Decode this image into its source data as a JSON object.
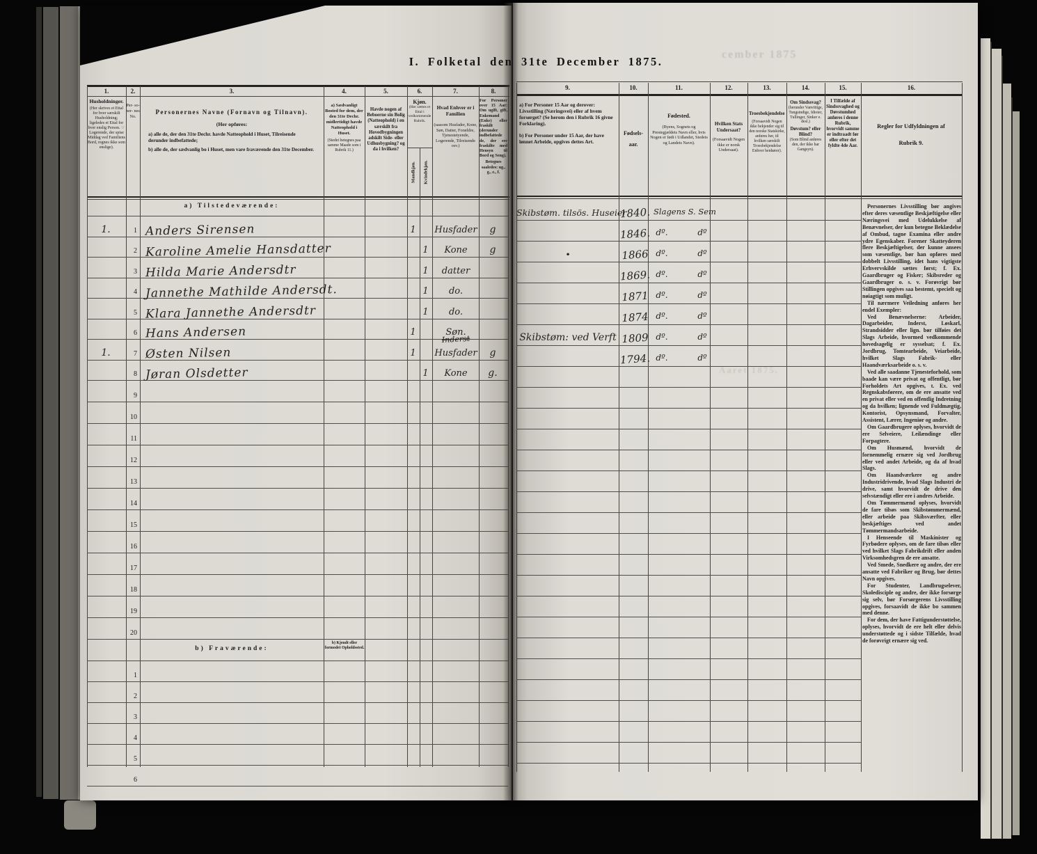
{
  "title": "I. Folketal den 31te December 1875.",
  "ghosts": {
    "top": "cember 1875",
    "mid": "Aaret 1875."
  },
  "columns": {
    "c1": {
      "num": "1.",
      "title": "Husholdninger.",
      "note": "(Her skrives et Ettal for hver særskilt Husholdning; ligeledes et Ettal for hver enslig Person. ☞ Logerende, der spise Middag ved Familiens Bord, regnes ikke som enslige)."
    },
    "c2": {
      "num": "2.",
      "title": "Per- so- ner- nes No."
    },
    "c3": {
      "num": "3.",
      "title": "Personernes Navne (Fornavn og Tilnavn).",
      "note_intro": "(Her opføres:",
      "note_a": "a) alle de, der den 31te Dechr. havde Natteophold i Huset, Tilreisende derunder indbefattede;",
      "note_b": "b) alle de, der sædvanlig bo i Huset, men vare fraværende den 31te December."
    },
    "c4": {
      "num": "4.",
      "title": "a) Sædvanligt Bosted for dem, der den 31te Dechr. midlertidigt havde Natteophold i Huset.",
      "note": "(Stedet betegnes paa samme Maade som i Rubrik 11.)"
    },
    "c5": {
      "num": "5.",
      "title": "Havde nogen af Beboerne sin Bolig (Natteophold) i en særskilt fra Hovedbygningen adskilt Side- eller Udhusbygning? og da i hvilken?"
    },
    "c6": {
      "num": "6.",
      "title": "Kjøn.",
      "note": "(Her sættes et Ettal i vedkommende Rubrik.",
      "sub_m": "Mandkjøn.",
      "sub_k": "Kvindekjøn."
    },
    "c7": {
      "num": "7.",
      "title": "Hvad Enhver er i Familien",
      "note": "(saasom Husfader, Kone, Søn, Datter, Forældre, Tjenestetyende, Logerende, Tilreisende osv.)"
    },
    "c8": {
      "num": "8.",
      "title": "For Personer over 15 Aar: Om ugift, gift, Enkemand (Enke) eller fraskilt (derunder indbefattede de, der ere fraskilte med Hensyn til Bord og Seng).",
      "note": "Betegnes saaledes: ug., g., e., f."
    },
    "c9": {
      "num": "9.",
      "a": "a) For Personer 15 Aar og derover: Livsstilling (Næringsvei) eller af hvem forsørget? (Se herom den i Rubrik 16 givne Forklaring).",
      "b": "b) For Personer under 15 Aar, der have lønnet Arbeide, opgives dettes Art."
    },
    "c10": {
      "num": "10.",
      "title": "Fødsels- aar."
    },
    "c11": {
      "num": "11.",
      "title": "Fødested.",
      "note": "(Byens, Sognets og Prestegjældets Navn eller, hvis Nogen er født i Udlandet, Stedets og Landets Navn)."
    },
    "c12": {
      "num": "12.",
      "title": "Hvilken Stats Undersaat?",
      "note": "(Forsaavidt Nogen ikke er norsk Undersaat)."
    },
    "c13": {
      "num": "13.",
      "title": "Troesbekjendelse.",
      "note": "(Forsaavidt Nogen ikke bekjender sig til den norske Statskirke, anføres her, til hvilken særskilt Troesbekjendelse Enhver henhører)."
    },
    "c14": {
      "num": "14.",
      "title": "Om Sindssvag?",
      "note1": "(herunder Vanvittige, Tungsindige, Idioter, Tullinger, Sinker e. desl.)",
      "title2": "Døvstum? eller Blind?",
      "note2": "(Som Blind anføres den, der ikke har Gangsyn)."
    },
    "c15": {
      "num": "15.",
      "title": "I Tilfælde af Sindssvaghed og Døvstumhed anføres i denne Rubrik, hvorvidt samme er indtraadt før eller efter det fyldte 4de Aar."
    },
    "c16": {
      "num": "16.",
      "title": "Regler for Udfyldningen af Rubrik 9."
    }
  },
  "sections": {
    "present": "a) Tilstedeværende:",
    "absent": "b) Fraværende:",
    "absent_col4": "b) Kjendt eller formodet Opholdssted."
  },
  "rows": [
    {
      "household": "1.",
      "no": "1",
      "name": "Anders Sirensen",
      "m": "1",
      "k": "",
      "family": "Husfader",
      "status": "g",
      "occupation": "Skibstøm. tilsös. Huseier",
      "born": "1840.",
      "birthplace": "Slagens S. Sem",
      "d1": "",
      "d2": ""
    },
    {
      "household": "",
      "no": "2",
      "name": "Karoline Amelie Hansdatter",
      "m": "",
      "k": "1",
      "family": "Kone",
      "status": "g",
      "occupation": "",
      "born": "1846.",
      "birthplace": "",
      "d1": "dº.",
      "d2": "dº"
    },
    {
      "household": "",
      "no": "3",
      "name": "Hilda Marie Andersdtr",
      "m": "",
      "k": "1",
      "family": "datter",
      "status": "",
      "occupation": "•",
      "born": "1866",
      "birthplace": "",
      "d1": "dº.",
      "d2": "dº"
    },
    {
      "household": "",
      "no": "4",
      "name": "Jannethe Mathilde Andersdt.",
      "m": "",
      "k": "1",
      "family": "do.",
      "status": "",
      "occupation": "",
      "born": "1869.",
      "birthplace": "",
      "d1": "dº.",
      "d2": "dº"
    },
    {
      "household": "",
      "no": "5",
      "name": "Klara Jannethe Andersdtr",
      "m": "",
      "k": "1",
      "family": "do.",
      "status": "",
      "occupation": "",
      "born": "1871",
      "birthplace": "",
      "d1": "dº.",
      "d2": "dº"
    },
    {
      "household": "",
      "no": "6",
      "name": "Hans Andersen",
      "m": "1",
      "k": "",
      "family": "Søn.",
      "status": "",
      "occupation": "",
      "born": "1874",
      "birthplace": "",
      "d1": "dº.",
      "d2": "dº"
    },
    {
      "household": "1.",
      "no": "7",
      "name": "Østen Nilsen",
      "m": "1",
      "k": "",
      "family": "Husfader",
      "family_struck": "Inderst",
      "status": "g",
      "occupation": "Skibstøm: ved Verft",
      "born": "1809",
      "birthplace": "",
      "d1": "dº.",
      "d2": "dº"
    },
    {
      "household": "",
      "no": "8",
      "name": "Jøran Olsdetter",
      "m": "",
      "k": "1",
      "family": "Kone",
      "status": "g.",
      "occupation": "",
      "born": "1794.",
      "birthplace": "",
      "d1": "dº.",
      "d2": "dº"
    }
  ],
  "present_empty": [
    "9",
    "10",
    "11",
    "12",
    "13",
    "14",
    "15",
    "16",
    "17",
    "18",
    "19",
    "20"
  ],
  "absent_empty": [
    "1",
    "2",
    "3",
    "4",
    "5",
    "6"
  ],
  "instructions": {
    "paragraphs": [
      "Personernes Livsstilling bør angives efter deres væsentlige Beskjæftigelse eller Næringsvei med Udelukkelse af Benævnelser, der kun betegne Beklædelse af Ombud, tagne Examina eller andre ydre Egenskaber. Forener Skatteyderen flere Beskjæftigelser, der kunne ansees som væsentlige, bør han opføres med dobbelt Livsstilling, idet hans vigtigste Erhvervskilde sættes først; f. Ex. Gaardbruger og Fisker; Skibsreder og Gaardbruger o. s. v. Forøvrigt bør Stillingen opgives saa bestemt, specielt og nøiagtigt som muligt.",
      "Til nærmere Veiledning anføres her endel Exempler:",
      "Ved Benævnelserne: Arbeider, Dagarbeider, Inderst, Løskarl, Strandsidder eller lign. bør tilføies det Slags Arbeide, hvormed vedkommende hovedsagelig er sysselsat; f. Ex. Jordbrug, Tomtearbeide, Veiarbeide, hvilket Slags Fabrik- eller Haandværksarbeide o. s. v.",
      "Ved alle saadanne Tjenesteforhold, som baade kan være privat og offentligt, bør Forholdets Art opgives, t. Ex. ved Regnskabsførere, om de ere ansatte ved en privat eller ved en offentlig Indretning og da hvilken; lignende ved Fuldmægtig, Kontorist, Opsynsmand, Forvalter, Assistent, Lærer, Ingeniør og andre.",
      "Om Gaardbrugere oplyses, hvorvidt de ere Selveiere, Leilændinge eller Forpagtere.",
      "Om Husmænd, hvorvidt de fornemmelig ernære sig ved Jordbrug eller ved andet Arbeide, og da af hvad Slags.",
      "Om Haandværkere og andre Industridrivende, hvad Slags Industri de drive, samt hvorvidt de drive den selvstændigt eller ere i andres Arbeide.",
      "Om Tømmermænd oplyses, hvorvidt de fare tilsøs som Skibstømmermænd, eller arbeide paa Skibsværfter, eller beskjæftiges ved andet Tømmermandsarbeide.",
      "I Henseende til Maskinister og Fyrbødere oplyses, om de fare tilsøs eller ved hvilket Slags Fabrikdrift eller anden Virksomhedsgren de ere ansatte.",
      "Ved Smede, Snedkere og andre, der ere ansatte ved Fabriker og Brug, bør dettes Navn opgives.",
      "For Studenter, Landbrugselever, Skoledisciple og andre, der ikke forsørge sig selv, bør Forsørgerens Livsstilling opgives, forsaavidt de ikke bo sammen med denne.",
      "For dem, der have Fattigunderstøttelse, oplyses, hvorvidt de ere helt eller delvis understøttede og i sidste Tilfælde, hvad de forøvrigt ernære sig ved."
    ]
  }
}
